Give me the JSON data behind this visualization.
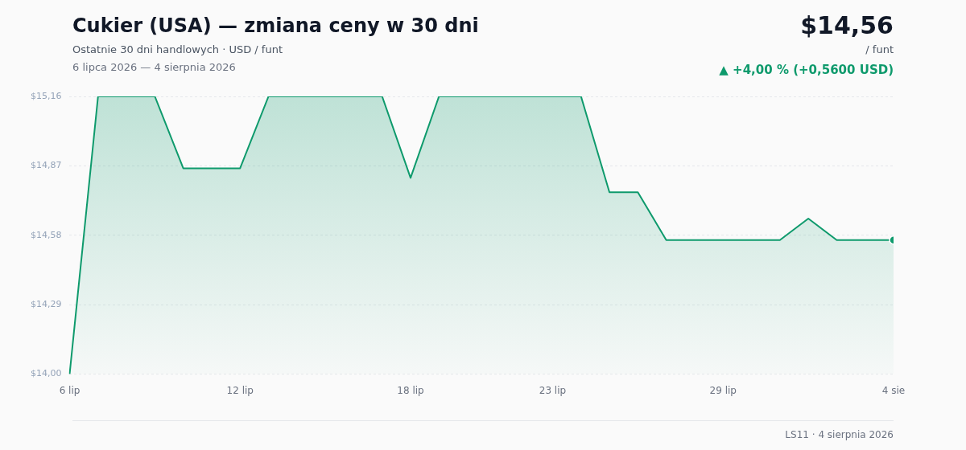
{
  "chart_data": {
    "type": "area",
    "title": "Cukier (USA) — zmiana ceny w 30 dni",
    "subtitle": "Ostatnie 30 dni handlowych · USD / funt",
    "annotations": [
      "6 lipca 2026 — 4 sierpnia 2026",
      "$14,56",
      "/ funt",
      "▲ +4,00 % (+0,5600 USD)",
      "LS11 · 4 sierpnia 2026"
    ],
    "categories": [
      "6 lip",
      null,
      null,
      null,
      null,
      null,
      "12 lip",
      null,
      null,
      null,
      null,
      null,
      "18 lip",
      null,
      null,
      null,
      null,
      "23 lip",
      null,
      null,
      null,
      null,
      null,
      "29 lip",
      null,
      null,
      null,
      null,
      null,
      "4 sie"
    ],
    "series": [
      {
        "color": "#0e9a6c",
        "values": [
          14.0,
          15.16,
          15.16,
          15.16,
          14.86,
          14.86,
          14.86,
          15.16,
          15.16,
          15.16,
          15.16,
          15.16,
          14.82,
          15.16,
          15.16,
          15.16,
          15.16,
          15.16,
          15.16,
          14.76,
          14.76,
          14.56,
          14.56,
          14.56,
          14.56,
          14.56,
          14.65,
          14.56,
          14.56,
          14.56
        ]
      },
      {
        "type": "scatter",
        "color": "#0e9a6c",
        "marker": "circle",
        "x": [
          "4 sie"
        ],
        "values": [
          14.56
        ]
      }
    ],
    "ylim": [
      14.0,
      15.16
    ],
    "yticks": [
      {
        "value": 14.0,
        "label": "$14,00"
      },
      {
        "value": 14.29,
        "label": "$14,29"
      },
      {
        "value": 14.58,
        "label": "$14,58"
      },
      {
        "value": 14.87,
        "label": "$14,87"
      },
      {
        "value": 15.16,
        "label": "$15,16"
      }
    ],
    "grid": "y",
    "legend": false,
    "marker": "none",
    "line_style": "solid"
  }
}
